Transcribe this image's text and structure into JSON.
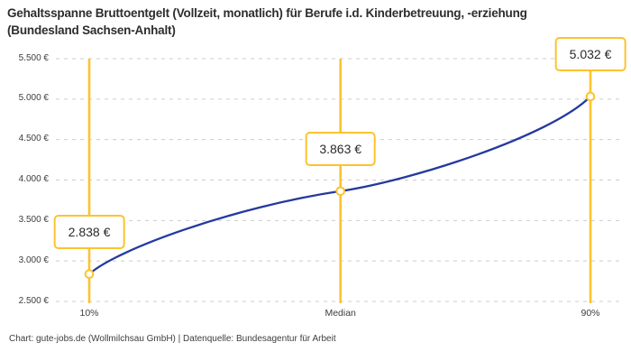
{
  "title": "Gehaltsspanne Bruttoentgelt (Vollzeit, monatlich) für Berufe i.d. Kinderbetreuung, -erziehung (Bundesland Sachsen-Anhalt)",
  "footer": "Chart: gute-jobs.de (Wollmilchsau GmbH) | Datenquelle: Bundesagentur für Arbeit",
  "chart_data": {
    "type": "line",
    "title": "Gehaltsspanne Bruttoentgelt (Vollzeit, monatlich) für Berufe i.d. Kinderbetreuung, -erziehung (Bundesland Sachsen-Anhalt)",
    "categories": [
      "10%",
      "Median",
      "90%"
    ],
    "values": [
      2838,
      3863,
      5032
    ],
    "value_labels": [
      "2.838 €",
      "3.863 €",
      "5.032 €"
    ],
    "y_tick_labels": [
      "5.500 €",
      "5.000 €",
      "4.500 €",
      "4.000 €",
      "3.500 €",
      "3.000 €",
      "2.500 €"
    ],
    "ylim": [
      2500,
      5500
    ],
    "y_tick_step": 500,
    "grid": "horizontal dashed",
    "legend": "none",
    "annotation_style": "value boxes above each point on vertical highlight lines",
    "colors": {
      "line": "#24399f",
      "highlight": "#fcc32e",
      "grid": "#cccccc",
      "axis_text": "#3d3d3d",
      "title_text": "#2d2d2d",
      "box_text": "#2a2a2a",
      "background": "#ffffff"
    }
  }
}
